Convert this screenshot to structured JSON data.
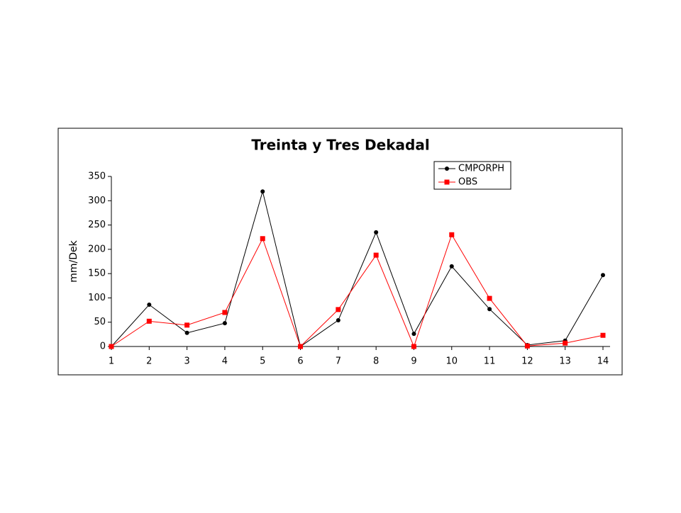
{
  "chart_data": {
    "type": "line",
    "title": "Treinta y Tres Dekadal",
    "y_label": "mm/Dek",
    "categories": [
      "1",
      "2",
      "3",
      "4",
      "5",
      "6",
      "7",
      "8",
      "9",
      "10",
      "11",
      "12",
      "13",
      "14"
    ],
    "series": [
      {
        "name": "CMPORPH",
        "color": "#000000",
        "marker": "circle",
        "values": [
          0,
          86,
          28,
          48,
          319,
          0,
          54,
          235,
          26,
          165,
          77,
          3,
          12,
          147
        ]
      },
      {
        "name": "OBS",
        "color": "#ff0000",
        "marker": "square",
        "values": [
          0,
          52,
          44,
          70,
          222,
          0,
          76,
          188,
          0,
          230,
          99,
          1,
          7,
          23
        ]
      }
    ],
    "ylim": [
      0,
      350
    ],
    "yticks": [
      0,
      50,
      100,
      150,
      200,
      250,
      300,
      350
    ],
    "grid": false,
    "legend": "top-right"
  }
}
